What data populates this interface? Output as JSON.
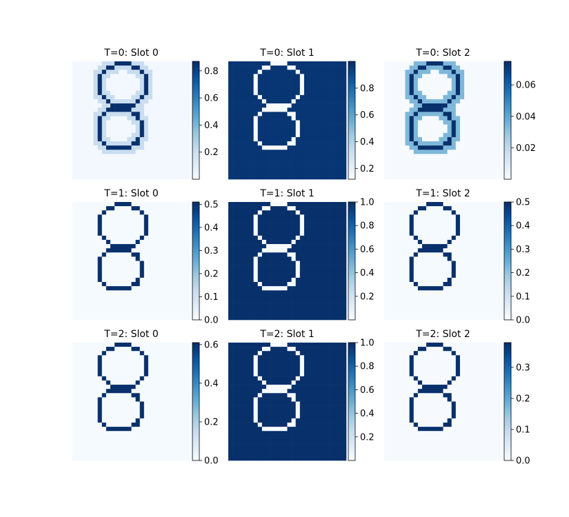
{
  "chart_data": [
    {
      "type": "heatmap",
      "title": "T=0: Slot 0",
      "panel": "edge",
      "vmin": 0.0,
      "vmax": 0.87,
      "base": 0.02,
      "blur": 0.22,
      "colorbar_ticks": [
        "0.2",
        "0.4",
        "0.6",
        "0.8"
      ]
    },
    {
      "type": "heatmap",
      "title": "T=0: Slot 1",
      "panel": "bg",
      "vmin": 0.12,
      "vmax": 1.0,
      "base": 0.98,
      "blur": 0.0,
      "colorbar_ticks": [
        "0.2",
        "0.4",
        "0.6",
        "0.8"
      ]
    },
    {
      "type": "heatmap",
      "title": "T=0: Slot 2",
      "panel": "edge",
      "vmin": 0.0,
      "vmax": 0.075,
      "base": 0.006,
      "blur": 0.45,
      "colorbar_ticks": [
        "0.02",
        "0.04",
        "0.06"
      ]
    },
    {
      "type": "heatmap",
      "title": "T=1: Slot 0",
      "panel": "edge",
      "vmin": 0.0,
      "vmax": 0.51,
      "base": 0.01,
      "blur": 0.0,
      "colorbar_ticks": [
        "0.0",
        "0.1",
        "0.2",
        "0.3",
        "0.4",
        "0.5"
      ]
    },
    {
      "type": "heatmap",
      "title": "T=1: Slot 1",
      "panel": "bg",
      "vmin": 0.0,
      "vmax": 1.0,
      "base": 1.0,
      "blur": 0.0,
      "colorbar_ticks": [
        "0.2",
        "0.4",
        "0.6",
        "0.8",
        "1.0"
      ]
    },
    {
      "type": "heatmap",
      "title": "T=1: Slot 2",
      "panel": "edge",
      "vmin": 0.0,
      "vmax": 0.5,
      "base": 0.01,
      "blur": 0.0,
      "colorbar_ticks": [
        "0.0",
        "0.1",
        "0.2",
        "0.3",
        "0.4",
        "0.5"
      ]
    },
    {
      "type": "heatmap",
      "title": "T=2: Slot 0",
      "panel": "edge",
      "vmin": 0.0,
      "vmax": 0.61,
      "base": 0.01,
      "blur": 0.0,
      "colorbar_ticks": [
        "0.0",
        "0.2",
        "0.4",
        "0.6"
      ]
    },
    {
      "type": "heatmap",
      "title": "T=2: Slot 1",
      "panel": "bg",
      "vmin": 0.0,
      "vmax": 1.0,
      "base": 1.0,
      "blur": 0.0,
      "colorbar_ticks": [
        "0.2",
        "0.4",
        "0.6",
        "0.8",
        "1.0"
      ]
    },
    {
      "type": "heatmap",
      "title": "T=2: Slot 2",
      "panel": "edge",
      "vmin": 0.0,
      "vmax": 0.38,
      "base": 0.006,
      "blur": 0.0,
      "colorbar_ticks": [
        "0.0",
        "0.1",
        "0.2",
        "0.3"
      ]
    }
  ],
  "colormap": {
    "name": "Blues",
    "low": "#f7fbff",
    "high": "#08306b"
  }
}
